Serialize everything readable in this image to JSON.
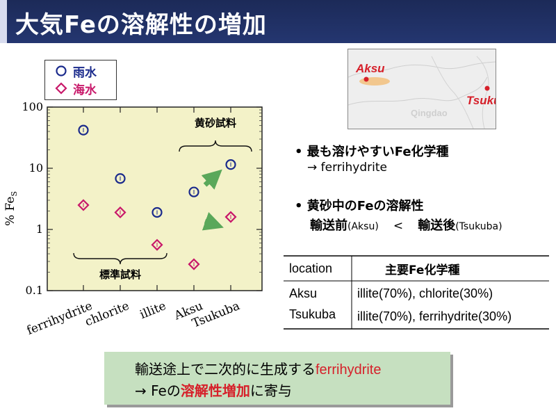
{
  "slide": {
    "title": "大気Feの溶解性の増加"
  },
  "legend": {
    "items": [
      {
        "label": "雨水",
        "marker": "circle",
        "color": "#1a2a8c"
      },
      {
        "label": "海水",
        "marker": "diamond",
        "color": "#c8186a"
      }
    ]
  },
  "chart_data": {
    "type": "scatter",
    "ylabel": "% Fe",
    "ylabel_sub": "S",
    "yscale": "log",
    "ylim": [
      0.1,
      100
    ],
    "yticks": [
      {
        "value": 0.1,
        "label": "0.1"
      },
      {
        "value": 1,
        "label": "1"
      },
      {
        "value": 10,
        "label": "10"
      },
      {
        "value": 100,
        "label": "100"
      }
    ],
    "categories": [
      "ferrihydrite",
      "chlorite",
      "illite",
      "Aksu",
      "Tsukuba"
    ],
    "series": [
      {
        "name": "雨水",
        "marker": "circle",
        "color": "#1a2a8c",
        "values": [
          42,
          6.8,
          1.9,
          4.1,
          11.5
        ]
      },
      {
        "name": "海水",
        "marker": "diamond",
        "color": "#c8186a",
        "values": [
          2.5,
          1.9,
          0.56,
          0.27,
          1.6
        ]
      }
    ],
    "plot_background": "#f3f2c8",
    "annotations": [
      {
        "text": "標準試料",
        "applies_to": [
          "ferrihydrite",
          "chlorite",
          "illite"
        ]
      },
      {
        "text": "黄砂試料",
        "applies_to": [
          "Aksu",
          "Tsukuba"
        ]
      }
    ],
    "arrow_color": "#5aa85a"
  },
  "map": {
    "labels": [
      "Aksu",
      "Tsukuba"
    ],
    "faint_label": "Qingdao"
  },
  "bullets": [
    {
      "line1": "最も溶けやすいFe化学種",
      "line2": "→ ferrihydrite"
    },
    {
      "line1": "黄砂中のFeの溶解性",
      "line2_a": "輸送前",
      "line2_b": "(Aksu)",
      "line2_c": "<",
      "line2_d": "輸送後",
      "line2_e": "(Tsukuba)"
    }
  ],
  "table": {
    "headers": [
      "location",
      "主要Fe化学種"
    ],
    "rows": [
      [
        "Aksu",
        "illite(70%), chlorite(30%)"
      ],
      [
        "Tsukuba",
        "illite(70%), ferrihydrite(30%)"
      ]
    ]
  },
  "summary": {
    "line1_a": "輸送途上で二次的に生成する",
    "line1_b": "ferrihydrite",
    "line2_a": "→ Feの",
    "line2_b": "溶解性増加",
    "line2_c": "に寄与"
  },
  "colors": {
    "title_bg": "#1c2a58",
    "accent_red": "#d6202a",
    "summary_bg": "#c6e0c0"
  }
}
